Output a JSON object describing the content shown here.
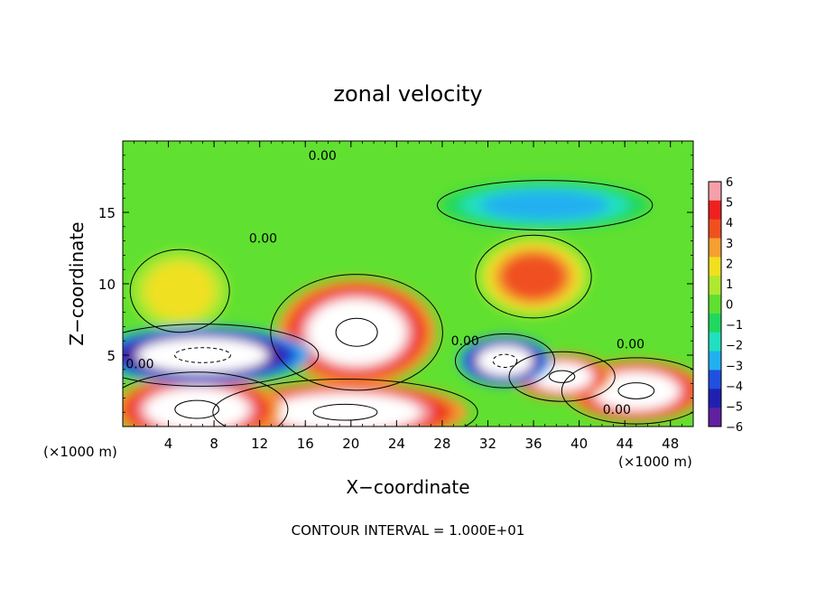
{
  "chart_data": {
    "type": "heatmap",
    "title": "zonal velocity",
    "xlabel": "X−coordinate",
    "ylabel": "Z−coordinate",
    "x_unit_left": "(×1000 m)",
    "x_unit_right": "(×1000 m)",
    "footer": "CONTOUR INTERVAL = 1.000E+01",
    "xlim": [
      0,
      50
    ],
    "ylim": [
      0,
      20
    ],
    "x_ticks": [
      4,
      8,
      12,
      16,
      20,
      24,
      28,
      32,
      36,
      40,
      44,
      48
    ],
    "y_ticks": [
      5,
      10,
      15
    ],
    "colorbar": {
      "ticks": [
        "6",
        "5",
        "4",
        "3",
        "2",
        "1",
        "0",
        "−1",
        "−2",
        "−3",
        "−4",
        "−5",
        "−6"
      ],
      "colors": [
        "#f4a0a8",
        "#ee2020",
        "#f05020",
        "#f5a030",
        "#f0e020",
        "#b0e830",
        "#60e030",
        "#20d860",
        "#20e0c0",
        "#20b0f0",
        "#2050e0",
        "#2020b0",
        "#6020a0"
      ]
    },
    "contour_labels": [
      {
        "text": "0.00",
        "x": 17.5,
        "z": 19.0
      },
      {
        "text": "0.00",
        "x": 12.3,
        "z": 13.2
      },
      {
        "text": "0.00",
        "x": 1.5,
        "z": 4.4
      },
      {
        "text": "0.00",
        "x": 30.0,
        "z": 6.0
      },
      {
        "text": "0.00",
        "x": 44.5,
        "z": 5.8
      },
      {
        "text": "0.00",
        "x": 43.3,
        "z": 1.2
      }
    ],
    "features": [
      {
        "x": 20.5,
        "z": 6.6,
        "rx": 5.2,
        "rz": 2.8,
        "value": 6.5
      },
      {
        "x": 36.0,
        "z": 10.5,
        "rx": 3.5,
        "rz": 2.0,
        "value": 3.5
      },
      {
        "x": 5.0,
        "z": 9.5,
        "rx": 3.0,
        "rz": 2.0,
        "value": 1.5
      },
      {
        "x": 19.5,
        "z": 1.0,
        "rx": 8.0,
        "rz": 1.6,
        "value": 6.5
      },
      {
        "x": 6.5,
        "z": 1.2,
        "rx": 5.5,
        "rz": 1.8,
        "value": 6.5
      },
      {
        "x": 45.0,
        "z": 2.5,
        "rx": 4.5,
        "rz": 1.6,
        "value": 6.5
      },
      {
        "x": 38.5,
        "z": 3.5,
        "rx": 3.2,
        "rz": 1.2,
        "value": 6.5
      },
      {
        "x": 7.0,
        "z": 5.0,
        "rx": 7.0,
        "rz": 1.5,
        "value": -6.5
      },
      {
        "x": 33.5,
        "z": 4.6,
        "rx": 3.0,
        "rz": 1.3,
        "value": -6.5
      },
      {
        "x": 37.0,
        "z": 15.5,
        "rx": 6.5,
        "rz": 1.2,
        "value": -3.0
      }
    ]
  }
}
